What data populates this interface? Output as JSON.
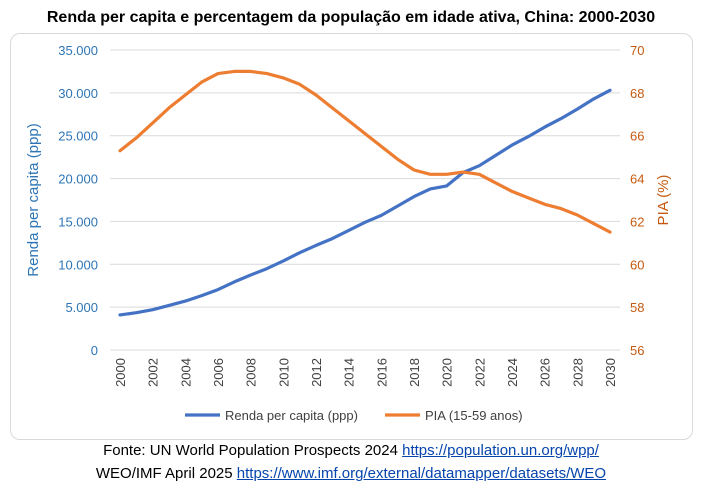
{
  "chart_data": {
    "type": "line",
    "title": "Renda per capita e percentagem da população em idade ativa, China: 2000-2030",
    "ylabel": "Renda per capita (ppp)",
    "y2label": "PIA (%)",
    "ylim": [
      0,
      35000
    ],
    "y2lim": [
      56,
      70
    ],
    "yticks": [
      0,
      5000,
      10000,
      15000,
      20000,
      25000,
      30000,
      35000
    ],
    "ytick_labels": [
      "0",
      "5.000",
      "10.000",
      "15.000",
      "20.000",
      "25.000",
      "30.000",
      "35.000"
    ],
    "y2ticks": [
      56,
      58,
      60,
      62,
      64,
      66,
      68,
      70
    ],
    "y2tick_labels": [
      "56",
      "58",
      "60",
      "62",
      "64",
      "66",
      "68",
      "70"
    ],
    "xtick_labels": [
      "2000",
      "2002",
      "2004",
      "2006",
      "2008",
      "2010",
      "2012",
      "2014",
      "2016",
      "2018",
      "2020",
      "2022",
      "2024",
      "2026",
      "2028",
      "2030"
    ],
    "x": [
      2000,
      2001,
      2002,
      2003,
      2004,
      2005,
      2006,
      2007,
      2008,
      2009,
      2010,
      2011,
      2012,
      2013,
      2014,
      2015,
      2016,
      2017,
      2018,
      2019,
      2020,
      2021,
      2022,
      2023,
      2024,
      2025,
      2026,
      2027,
      2028,
      2029,
      2030
    ],
    "series": [
      {
        "name": "Renda per capita (ppp)",
        "axis": "left",
        "color": "#4472c4",
        "values": [
          4100,
          4350,
          4700,
          5200,
          5700,
          6350,
          7050,
          7950,
          8750,
          9500,
          10400,
          11350,
          12200,
          13000,
          13950,
          14900,
          15700,
          16800,
          17900,
          18800,
          19150,
          20700,
          21500,
          22700,
          23900,
          24900,
          26000,
          27000,
          28100,
          29300,
          30300
        ]
      },
      {
        "name": "PIA (15-59 anos)",
        "axis": "right",
        "color": "#ed7d31",
        "values": [
          65.3,
          65.9,
          66.6,
          67.3,
          67.9,
          68.5,
          68.9,
          69.0,
          69.0,
          68.9,
          68.7,
          68.4,
          67.9,
          67.3,
          66.7,
          66.1,
          65.5,
          64.9,
          64.4,
          64.2,
          64.2,
          64.3,
          64.2,
          63.8,
          63.4,
          63.1,
          62.8,
          62.6,
          62.3,
          61.9,
          61.5
        ]
      }
    ],
    "legend_position": "bottom"
  },
  "source": {
    "line1_text": "Fonte: UN World Population Prospects 2024 ",
    "line1_link": "https://population.un.org/wpp/",
    "line2_text": "WEO/IMF April 2025 ",
    "line2_link": "https://www.imf.org/external/datamapper/datasets/WEO"
  }
}
